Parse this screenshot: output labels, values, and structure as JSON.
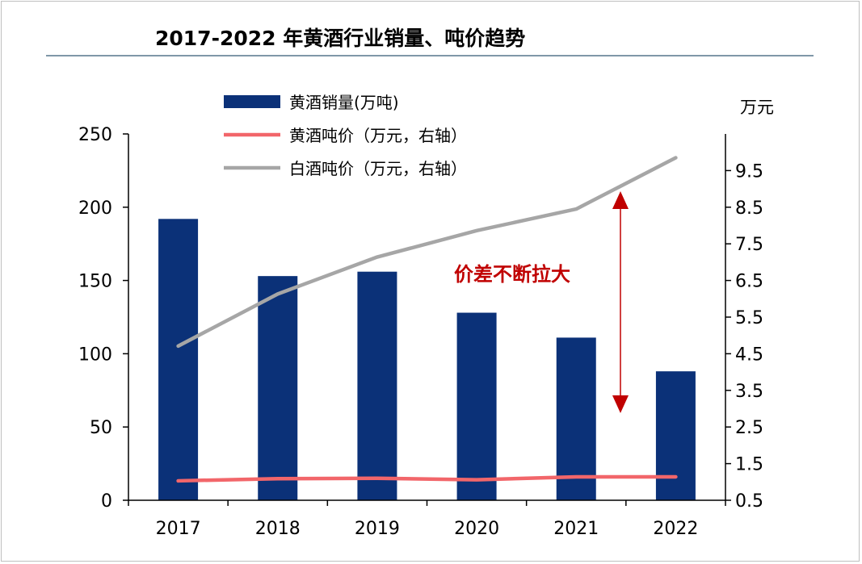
{
  "title": "2017-2022 年黄酒行业销量、吨价趋势",
  "colors": {
    "bar": "#0b3178",
    "huangjiu_price_line": "#f2666a",
    "baijiu_price_line": "#a6a6a6",
    "annotation": "#c00000",
    "axis": "#000000"
  },
  "chart_data": {
    "type": "bar",
    "categories": [
      "2017",
      "2018",
      "2019",
      "2020",
      "2021",
      "2022"
    ],
    "y_left": {
      "ylim": [
        0,
        250
      ],
      "ticks": [
        "0",
        "50",
        "100",
        "150",
        "200",
        "250"
      ]
    },
    "y_right": {
      "unit_label": "万元",
      "ylim": [
        0.5,
        10.5
      ],
      "ticks": [
        "0.5",
        "1.5",
        "2.5",
        "3.5",
        "4.5",
        "5.5",
        "6.5",
        "7.5",
        "8.5",
        "9.5"
      ]
    },
    "series": [
      {
        "name": "黄酒销量(万吨)",
        "type": "bar",
        "axis": "left",
        "values": [
          192,
          153,
          156,
          128,
          111,
          88
        ]
      },
      {
        "name": "黄酒吨价（万元，右轴）",
        "type": "line",
        "axis": "right",
        "values": [
          1.03,
          1.09,
          1.1,
          1.06,
          1.14,
          1.14
        ]
      },
      {
        "name": "白酒吨价（万元，右轴）",
        "type": "line",
        "axis": "right",
        "values": [
          4.71,
          6.13,
          7.14,
          7.86,
          8.45,
          9.85
        ]
      }
    ],
    "annotation": {
      "text": "价差不断拉大",
      "arrow_between": [
        "黄酒吨价（万元，右轴）",
        "白酒吨价（万元，右轴）"
      ]
    },
    "grid": false,
    "legend_placement": "top-left"
  }
}
